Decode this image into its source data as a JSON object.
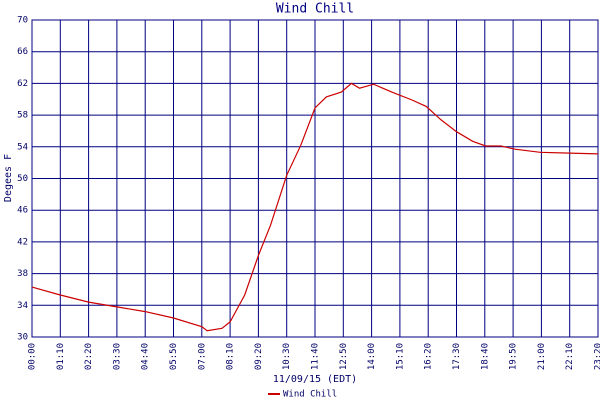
{
  "chart_data": {
    "type": "line",
    "title": "Wind Chill",
    "x_label": "11/09/15 (EDT)",
    "y_label": "Degees F",
    "x": [
      0,
      70,
      140,
      210,
      280,
      350,
      420,
      433,
      470,
      490,
      526,
      560,
      590,
      630,
      665,
      700,
      728,
      765,
      790,
      810,
      845,
      890,
      940,
      975,
      1012,
      1050,
      1090,
      1122,
      1160,
      1195,
      1257,
      1330,
      1400
    ],
    "series": [
      {
        "name": "Wind Chill",
        "color": "#cc0000",
        "values": [
          36.3,
          35.3,
          34.4,
          33.8,
          33.2,
          32.4,
          31.3,
          30.8,
          31.1,
          31.9,
          35.3,
          40.3,
          44.1,
          50.4,
          54.2,
          58.9,
          60.3,
          60.9,
          62.0,
          61.4,
          61.9,
          60.9,
          59.9,
          59.1,
          57.4,
          55.9,
          54.7,
          54.1,
          54.1,
          53.7,
          53.3,
          53.2,
          53.1
        ]
      }
    ],
    "xlim": [
      0,
      1400
    ],
    "xticks": [
      {
        "value": 0,
        "label": "00:00"
      },
      {
        "value": 70,
        "label": "01:10"
      },
      {
        "value": 140,
        "label": "02:20"
      },
      {
        "value": 210,
        "label": "03:30"
      },
      {
        "value": 280,
        "label": "04:40"
      },
      {
        "value": 350,
        "label": "05:50"
      },
      {
        "value": 420,
        "label": "07:00"
      },
      {
        "value": 490,
        "label": "08:10"
      },
      {
        "value": 560,
        "label": "09:20"
      },
      {
        "value": 630,
        "label": "10:30"
      },
      {
        "value": 700,
        "label": "11:40"
      },
      {
        "value": 770,
        "label": "12:50"
      },
      {
        "value": 840,
        "label": "14:00"
      },
      {
        "value": 910,
        "label": "15:10"
      },
      {
        "value": 980,
        "label": "16:20"
      },
      {
        "value": 1050,
        "label": "17:30"
      },
      {
        "value": 1120,
        "label": "18:40"
      },
      {
        "value": 1190,
        "label": "19:50"
      },
      {
        "value": 1260,
        "label": "21:00"
      },
      {
        "value": 1330,
        "label": "22:10"
      },
      {
        "value": 1400,
        "label": "23:20"
      }
    ],
    "ylim": [
      30,
      70
    ],
    "yticks": [
      30,
      34,
      38,
      42,
      46,
      50,
      54,
      58,
      62,
      66,
      70
    ],
    "grid": true
  }
}
